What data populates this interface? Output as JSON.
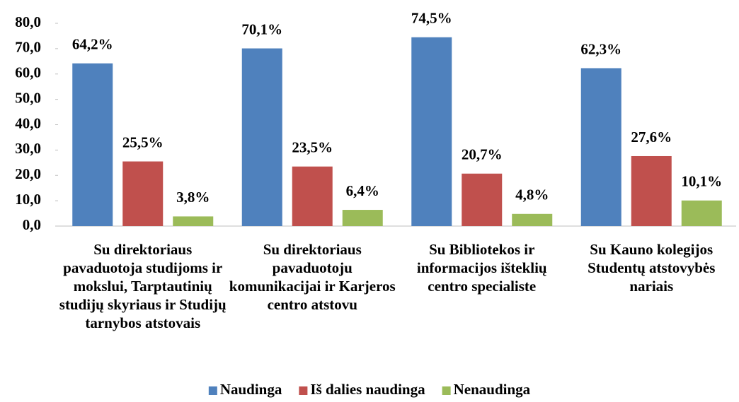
{
  "chart_data": {
    "type": "bar",
    "categories": [
      "Su direktoriaus pavaduotoja studijoms ir mokslui, Tarptautinių studijų skyriaus ir Studijų tarnybos atstovais",
      "Su direktoriaus pavaduotoju komunikacijai ir Karjeros centro atstovu",
      "Su Bibliotekos ir informacijos išteklių centro specialiste",
      "Su Kauno kolegijos Studentų atstovybės nariais"
    ],
    "series": [
      {
        "name": "Naudinga",
        "color": "#4f81bd",
        "values": [
          64.2,
          70.1,
          74.5,
          62.3
        ],
        "value_labels": [
          "64,2%",
          "70,1%",
          "74,5%",
          "62,3%"
        ]
      },
      {
        "name": "Iš dalies naudinga",
        "color": "#c0504d",
        "values": [
          25.5,
          23.5,
          20.7,
          27.6
        ],
        "value_labels": [
          "25,5%",
          "23,5%",
          "20,7%",
          "27,6%"
        ]
      },
      {
        "name": "Nenaudinga",
        "color": "#9bbb59",
        "values": [
          3.8,
          6.4,
          4.8,
          10.1
        ],
        "value_labels": [
          "3,8%",
          "6,4%",
          "4,8%",
          "10,1%"
        ]
      }
    ],
    "ylim": [
      0,
      80
    ],
    "yticks": [
      {
        "value": 0,
        "label": "0,0"
      },
      {
        "value": 10,
        "label": "10,0"
      },
      {
        "value": 20,
        "label": "20,0"
      },
      {
        "value": 30,
        "label": "30,0"
      },
      {
        "value": 40,
        "label": "40,0"
      },
      {
        "value": 50,
        "label": "50,0"
      },
      {
        "value": 60,
        "label": "60,0"
      },
      {
        "value": 70,
        "label": "70,0"
      },
      {
        "value": 80,
        "label": "80,0"
      }
    ],
    "legend": "bottom"
  }
}
